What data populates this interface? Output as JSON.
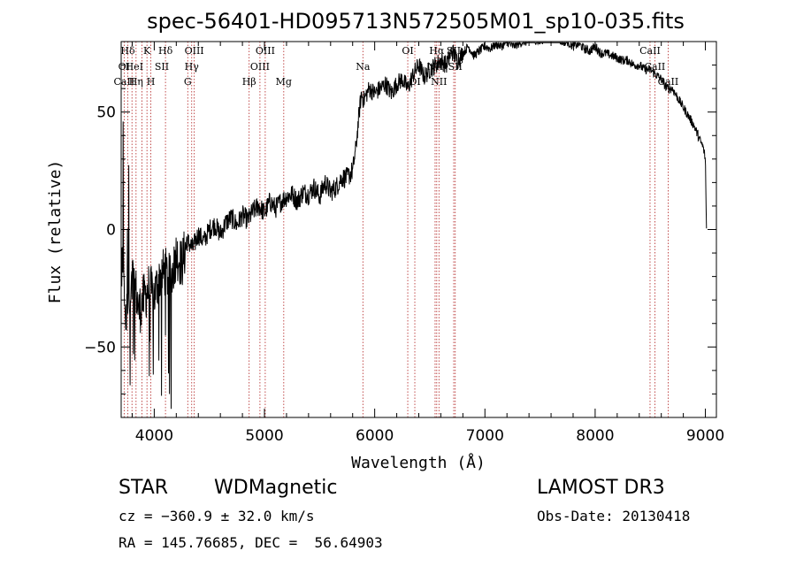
{
  "chart_data": {
    "type": "line",
    "title": "spec-56401-HD095713N572505M01_sp10-035.fits",
    "xlabel": "Wavelength (Å)",
    "ylabel": "Flux (relative)",
    "xlim": [
      3700,
      9100
    ],
    "ylim": [
      -80,
      80
    ],
    "x_ticks": [
      4000,
      5000,
      6000,
      7000,
      8000,
      9000
    ],
    "x_tick_labels": [
      "4000",
      "5000",
      "6000",
      "7000",
      "8000",
      "9000"
    ],
    "y_ticks": [
      -50,
      0,
      50
    ],
    "y_tick_labels": [
      "−50",
      "0",
      "50"
    ],
    "series": [
      {
        "name": "flux",
        "x": [
          3700,
          3720,
          3740,
          3760,
          3780,
          3800,
          3830,
          3860,
          3900,
          3950,
          4000,
          4050,
          4100,
          4150,
          4200,
          4250,
          4300,
          4350,
          4400,
          4450,
          4500,
          4550,
          4600,
          4650,
          4700,
          4750,
          4800,
          4850,
          4900,
          4950,
          5000,
          5050,
          5100,
          5150,
          5200,
          5250,
          5300,
          5350,
          5400,
          5450,
          5500,
          5550,
          5600,
          5650,
          5700,
          5750,
          5800,
          5830,
          5860,
          5880,
          5900,
          5950,
          6000,
          6050,
          6100,
          6150,
          6200,
          6250,
          6300,
          6350,
          6400,
          6450,
          6500,
          6550,
          6600,
          6650,
          6700,
          6750,
          6800,
          6850,
          6900,
          6950,
          7000,
          7050,
          7100,
          7150,
          7200,
          7250,
          7300,
          7350,
          7400,
          7450,
          7500,
          7550,
          7600,
          7650,
          7700,
          7750,
          7800,
          7850,
          7900,
          7950,
          8000,
          8050,
          8100,
          8150,
          8200,
          8250,
          8300,
          8350,
          8400,
          8450,
          8500,
          8550,
          8600,
          8650,
          8700,
          8750,
          8800,
          8850,
          8900,
          8950,
          8980,
          9000,
          9010
        ],
        "values": [
          -20,
          -10,
          -40,
          -25,
          -30,
          -20,
          -25,
          -35,
          -30,
          -25,
          -28,
          -20,
          -18,
          -22,
          -10,
          -15,
          -5,
          -8,
          -2,
          -5,
          0,
          2,
          -2,
          3,
          5,
          2,
          6,
          4,
          8,
          10,
          7,
          12,
          9,
          12,
          14,
          15,
          12,
          16,
          15,
          18,
          14,
          20,
          16,
          18,
          22,
          22,
          25,
          35,
          50,
          58,
          55,
          60,
          58,
          60,
          62,
          58,
          62,
          64,
          60,
          66,
          70,
          65,
          68,
          70,
          72,
          70,
          76,
          72,
          75,
          78,
          74,
          76,
          78,
          77,
          79,
          78,
          80,
          78,
          79,
          80,
          80,
          81,
          80,
          82,
          85,
          82,
          80,
          80,
          78,
          79,
          77,
          76,
          78,
          75,
          75,
          74,
          73,
          72,
          72,
          70,
          70,
          68,
          68,
          66,
          64,
          60,
          60,
          56,
          52,
          48,
          44,
          38,
          35,
          30,
          0
        ]
      }
    ],
    "line_labels": [
      {
        "label": "Hδ",
        "wavelength": 3760
      },
      {
        "label": "K",
        "wavelength": 3934
      },
      {
        "label": "Hδ",
        "wavelength": 4102
      },
      {
        "label": "OIII",
        "wavelength": 4363
      },
      {
        "label": "OIII",
        "wavelength": 5007
      },
      {
        "label": "OI",
        "wavelength": 6300
      },
      {
        "label": "Hα",
        "wavelength": 6563
      },
      {
        "label": "SII",
        "wavelength": 6717
      },
      {
        "label": "CaII",
        "wavelength": 8498
      },
      {
        "label": "OI",
        "wavelength": 3727
      },
      {
        "label": "HeI",
        "wavelength": 3819
      },
      {
        "label": "SII",
        "wavelength": 4069
      },
      {
        "label": "Hγ",
        "wavelength": 4340
      },
      {
        "label": "OIII",
        "wavelength": 4959
      },
      {
        "label": "Na",
        "wavelength": 5893
      },
      {
        "label": "NII",
        "wavelength": 6548
      },
      {
        "label": "SII",
        "wavelength": 6731
      },
      {
        "label": "CaII",
        "wavelength": 8542
      },
      {
        "label": "CaII",
        "wavelength": 3727
      },
      {
        "label": "Hη",
        "wavelength": 3835
      },
      {
        "label": "H",
        "wavelength": 3969
      },
      {
        "label": "G",
        "wavelength": 4304
      },
      {
        "label": "Hβ",
        "wavelength": 4861
      },
      {
        "label": "Mg",
        "wavelength": 5175
      },
      {
        "label": "OI",
        "wavelength": 6364
      },
      {
        "label": "NII",
        "wavelength": 6583
      },
      {
        "label": "CaII",
        "wavelength": 8662
      }
    ],
    "line_label_rows": [
      0,
      0,
      0,
      0,
      0,
      0,
      0,
      0,
      0,
      1,
      1,
      1,
      1,
      1,
      1,
      1,
      1,
      1,
      2,
      2,
      2,
      2,
      2,
      2,
      2,
      2,
      2
    ],
    "marker_lines": [
      3727,
      3760,
      3798,
      3835,
      3889,
      3934,
      3969,
      4102,
      4304,
      4340,
      4363,
      4861,
      4959,
      5007,
      5175,
      5893,
      6300,
      6364,
      6548,
      6563,
      6583,
      6717,
      6731,
      8498,
      8542,
      8662
    ]
  },
  "info": {
    "object_class": "STAR",
    "subclass": "WDMagnetic",
    "survey": "LAMOST DR3",
    "cz": "cz = −360.9 ± 32.0 km/s",
    "obs_date": "Obs-Date: 20130418",
    "coords": "RA = 145.76685, DEC =  56.64903"
  }
}
